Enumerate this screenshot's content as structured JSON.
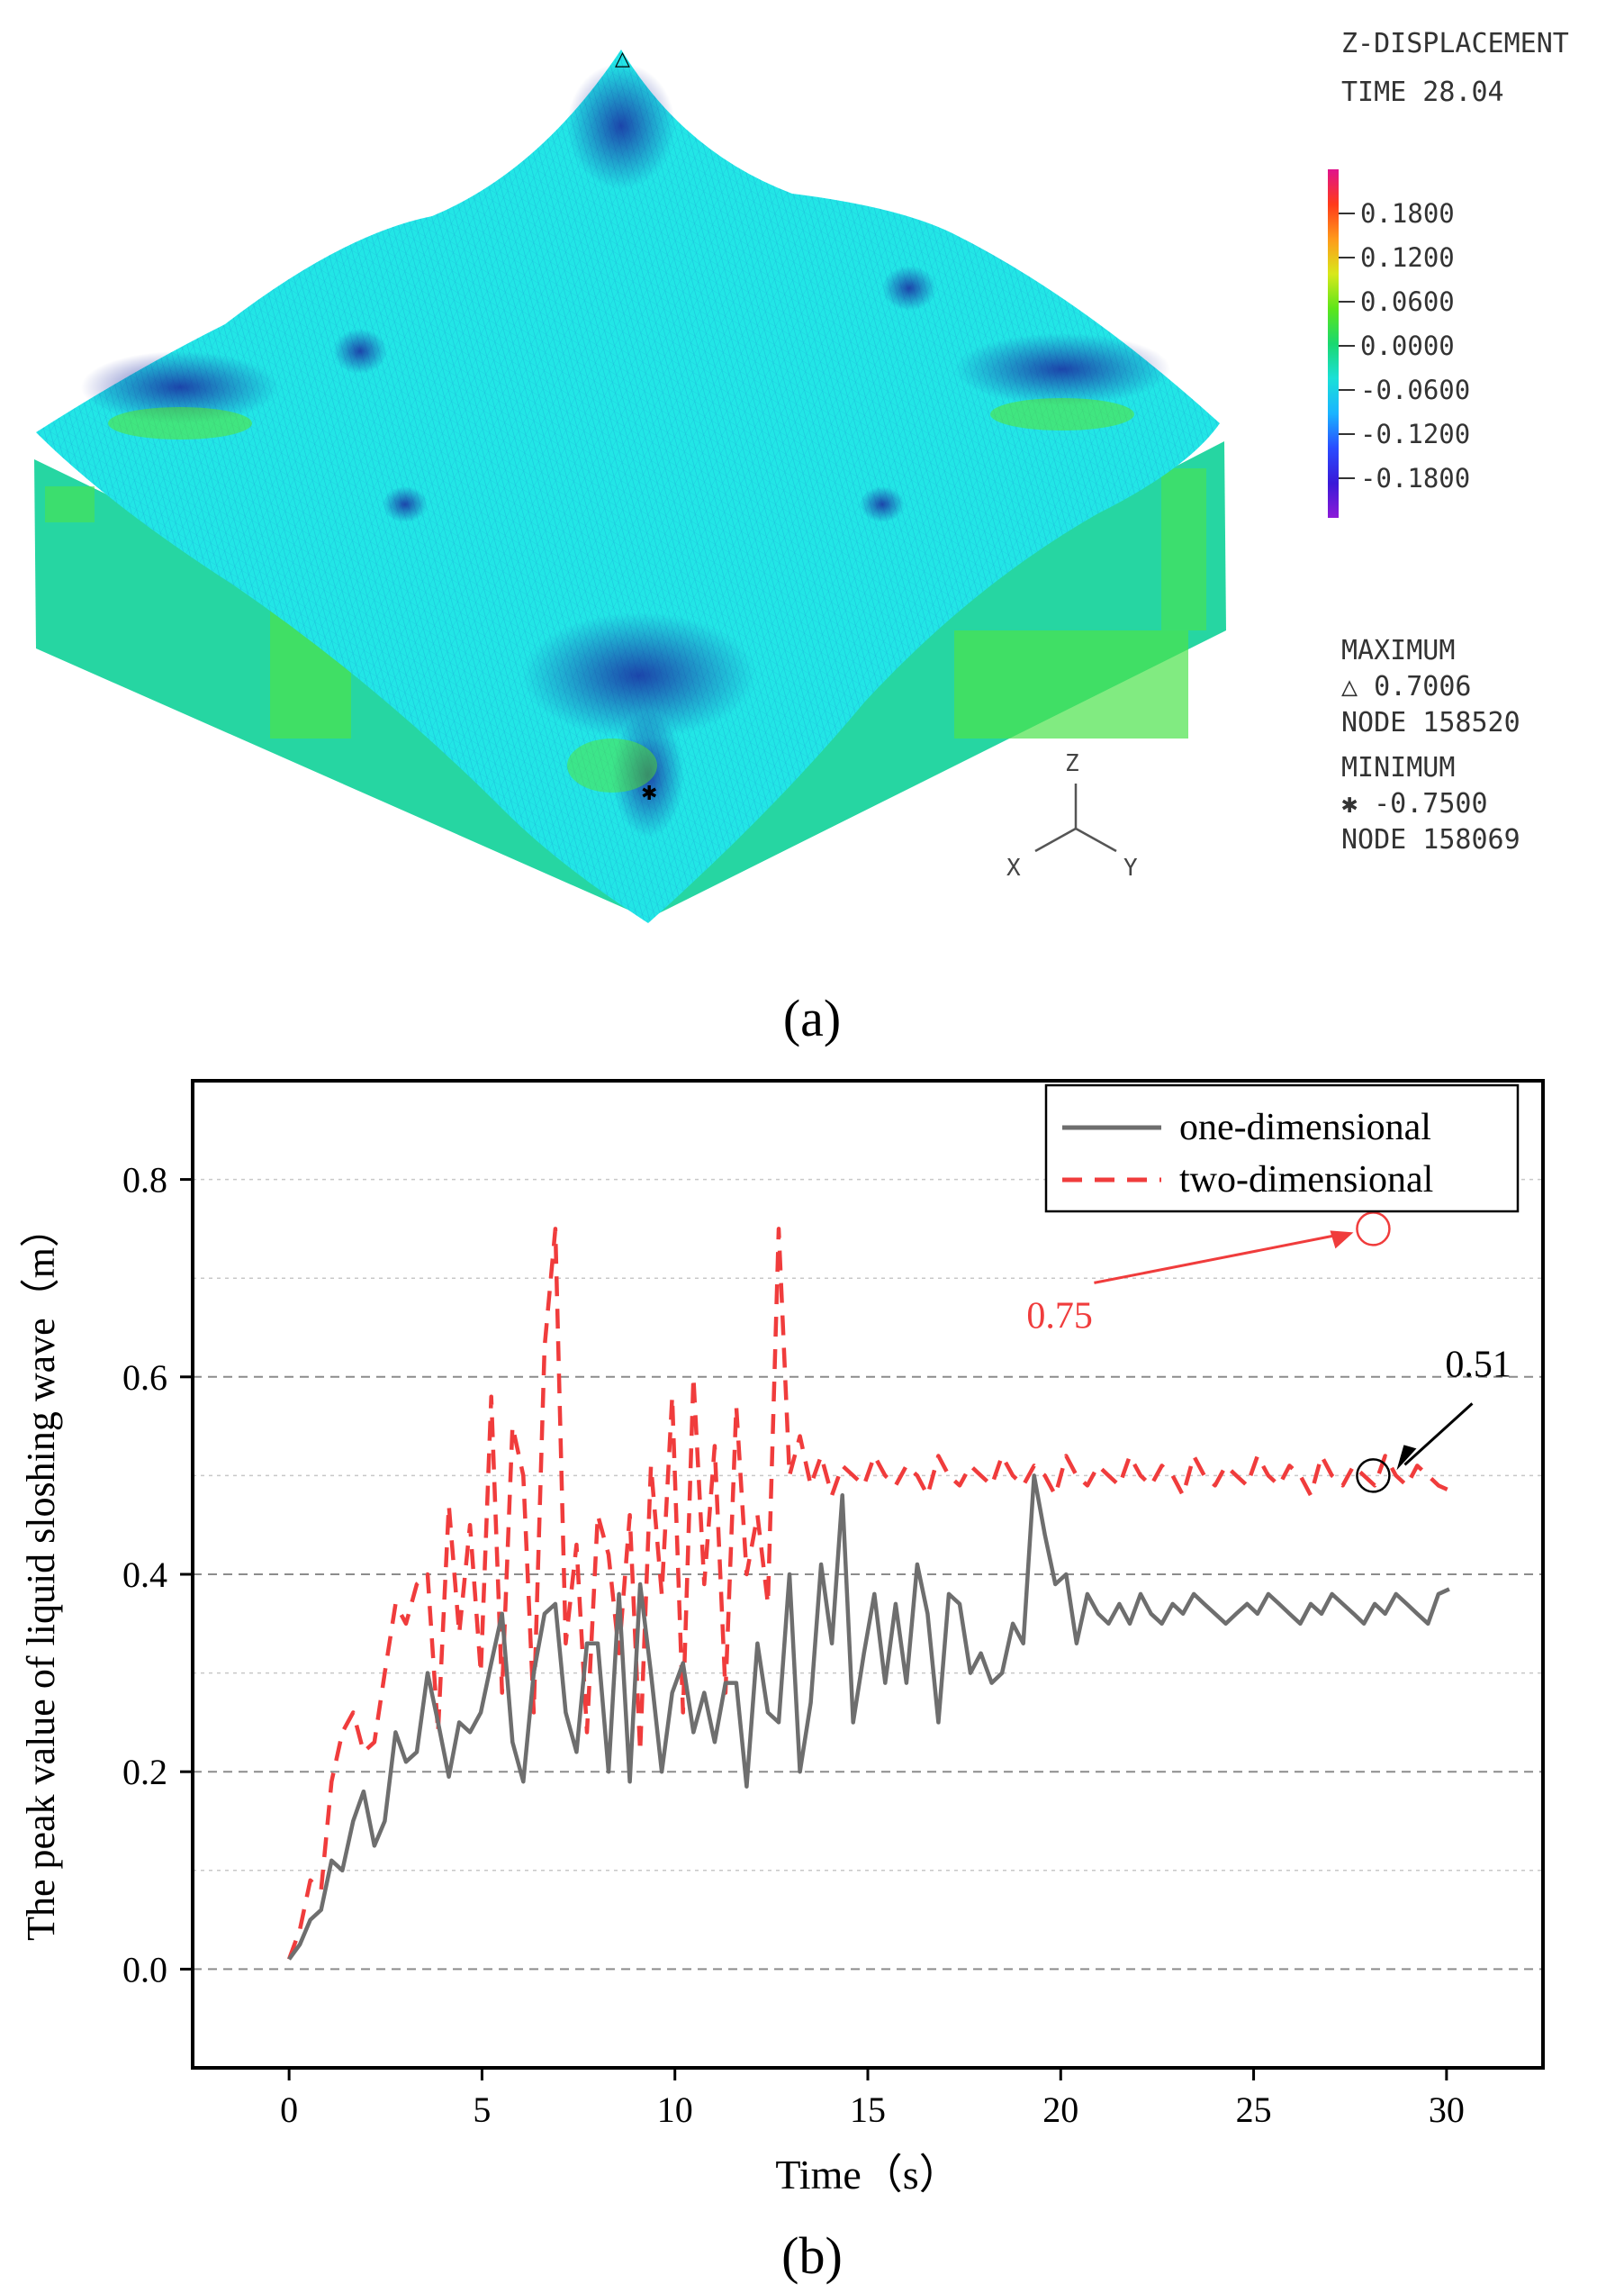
{
  "panel_a": {
    "caption": "(a)",
    "legend_title": [
      "Z-DISPLACEMENT",
      "TIME 28.04"
    ],
    "colorbar_ticks": [
      "0.1800",
      "0.1200",
      "0.0600",
      "0.0000",
      "-0.0600",
      "-0.1200",
      "-0.1800"
    ],
    "colorbar_colors": [
      "#e0148c",
      "#ff3a1a",
      "#ff9a1a",
      "#d8e81a",
      "#5de61a",
      "#1ad870",
      "#1ae0d8",
      "#1ab4ff",
      "#2a4cff",
      "#3a1ad8",
      "#8c1ad8"
    ],
    "maximum_label": "MAXIMUM",
    "maximum_value": "△ 0.7006",
    "maximum_node": "NODE 158520",
    "minimum_label": "MINIMUM",
    "minimum_value": "✱ -0.7500",
    "minimum_node": "NODE 158069",
    "axes_triad": {
      "z": "Z",
      "x": "X",
      "y": "Y"
    },
    "fill_color": "#22e6e6",
    "side_color": "#26d6a2"
  },
  "panel_b": {
    "caption": "(b)"
  },
  "chart_data": {
    "type": "line",
    "title": "",
    "xlabel": "Time（s）",
    "ylabel": "The peak value of liquid sloshing wave（m）",
    "xlim": [
      -2.5,
      32.5
    ],
    "ylim": [
      -0.1,
      0.9
    ],
    "xticks": [
      "0",
      "5",
      "10",
      "15",
      "20",
      "25",
      "30"
    ],
    "yticks": [
      "0.0",
      "0.2",
      "0.4",
      "0.6",
      "0.8"
    ],
    "grid": "horizontal dashed",
    "legend_position": "top-right",
    "series": [
      {
        "name": "one-dimensional",
        "color": "#6e6e6e",
        "style": "solid",
        "x": [
          0,
          0.28,
          0.55,
          0.83,
          1.1,
          1.38,
          1.66,
          1.93,
          2.21,
          2.48,
          2.76,
          3.03,
          3.31,
          3.59,
          3.86,
          4.14,
          4.41,
          4.69,
          4.97,
          5.24,
          5.52,
          5.79,
          6.07,
          6.34,
          6.62,
          6.9,
          7.17,
          7.45,
          7.72,
          8.0,
          8.28,
          8.55,
          8.83,
          9.1,
          9.38,
          9.66,
          9.93,
          10.21,
          10.48,
          10.76,
          11.03,
          11.31,
          11.59,
          11.86,
          12.14,
          12.41,
          12.69,
          12.97,
          13.24,
          13.52,
          13.79,
          14.07,
          14.34,
          14.62,
          14.9,
          15.17,
          15.45,
          15.72,
          16.0,
          16.28,
          16.55,
          16.83,
          17.1,
          17.38,
          17.66,
          17.93,
          18.21,
          18.48,
          18.76,
          19.03,
          19.31,
          19.59,
          19.86,
          20.14,
          20.41,
          20.69,
          20.97,
          21.24,
          21.52,
          21.79,
          22.07,
          22.34,
          22.62,
          22.9,
          23.17,
          23.45,
          23.72,
          24.0,
          24.28,
          24.55,
          24.83,
          25.1,
          25.38,
          25.66,
          25.93,
          26.21,
          26.48,
          26.76,
          27.03,
          27.31,
          27.59,
          27.86,
          28.14,
          28.41,
          28.69,
          28.97,
          29.24,
          29.52,
          29.79,
          30.07
        ],
        "values": [
          0.01,
          0.025,
          0.05,
          0.06,
          0.11,
          0.1,
          0.15,
          0.18,
          0.125,
          0.15,
          0.24,
          0.21,
          0.22,
          0.3,
          0.25,
          0.195,
          0.25,
          0.24,
          0.26,
          0.31,
          0.36,
          0.23,
          0.19,
          0.3,
          0.36,
          0.37,
          0.26,
          0.22,
          0.33,
          0.33,
          0.2,
          0.38,
          0.19,
          0.39,
          0.3,
          0.2,
          0.28,
          0.31,
          0.24,
          0.28,
          0.23,
          0.29,
          0.29,
          0.185,
          0.33,
          0.26,
          0.25,
          0.4,
          0.2,
          0.27,
          0.41,
          0.33,
          0.48,
          0.25,
          0.32,
          0.38,
          0.29,
          0.37,
          0.29,
          0.41,
          0.36,
          0.25,
          0.38,
          0.37,
          0.3,
          0.32,
          0.29,
          0.3,
          0.35,
          0.33,
          0.5,
          0.44,
          0.39,
          0.4,
          0.33,
          0.38,
          0.36,
          0.35,
          0.37,
          0.35,
          0.38,
          0.36,
          0.35,
          0.37,
          0.36,
          0.38,
          0.37,
          0.36,
          0.35,
          0.36,
          0.37,
          0.36,
          0.38,
          0.37,
          0.36,
          0.35,
          0.37,
          0.36,
          0.38,
          0.37,
          0.36,
          0.35,
          0.37,
          0.36,
          0.38,
          0.37,
          0.36,
          0.35,
          0.38,
          0.385
        ]
      },
      {
        "name": "two-dimensional",
        "color": "#f03c3c",
        "style": "dashed",
        "x": [
          0,
          0.28,
          0.55,
          0.83,
          1.1,
          1.38,
          1.66,
          1.93,
          2.21,
          2.48,
          2.76,
          3.03,
          3.31,
          3.59,
          3.86,
          4.14,
          4.41,
          4.69,
          4.97,
          5.24,
          5.52,
          5.79,
          6.07,
          6.34,
          6.62,
          6.9,
          7.17,
          7.45,
          7.72,
          8.0,
          8.28,
          8.55,
          8.83,
          9.1,
          9.38,
          9.66,
          9.93,
          10.21,
          10.48,
          10.76,
          11.03,
          11.31,
          11.59,
          11.86,
          12.14,
          12.41,
          12.69,
          12.97,
          13.24,
          13.52,
          13.79,
          14.07,
          14.34,
          14.62,
          14.9,
          15.17,
          15.45,
          15.72,
          16.0,
          16.28,
          16.55,
          16.83,
          17.1,
          17.38,
          17.66,
          17.93,
          18.21,
          18.48,
          18.76,
          19.03,
          19.31,
          19.59,
          19.86,
          20.14,
          20.41,
          20.69,
          20.97,
          21.24,
          21.52,
          21.79,
          22.07,
          22.34,
          22.62,
          22.9,
          23.17,
          23.45,
          23.72,
          24.0,
          24.28,
          24.55,
          24.83,
          25.1,
          25.38,
          25.66,
          25.93,
          26.21,
          26.48,
          26.76,
          27.03,
          27.31,
          27.59,
          27.86,
          28.14,
          28.41,
          28.69,
          28.97,
          29.24,
          29.52,
          29.79,
          30.07
        ],
        "values": [
          0.01,
          0.04,
          0.09,
          0.08,
          0.19,
          0.24,
          0.26,
          0.22,
          0.23,
          0.3,
          0.37,
          0.35,
          0.39,
          0.4,
          0.24,
          0.47,
          0.34,
          0.45,
          0.3,
          0.58,
          0.28,
          0.55,
          0.5,
          0.26,
          0.63,
          0.75,
          0.33,
          0.43,
          0.24,
          0.46,
          0.42,
          0.32,
          0.46,
          0.22,
          0.51,
          0.38,
          0.58,
          0.26,
          0.6,
          0.39,
          0.53,
          0.28,
          0.57,
          0.4,
          0.46,
          0.37,
          0.75,
          0.5,
          0.54,
          0.49,
          0.52,
          0.48,
          0.51,
          0.5,
          0.49,
          0.52,
          0.5,
          0.49,
          0.51,
          0.5,
          0.48,
          0.52,
          0.5,
          0.49,
          0.51,
          0.5,
          0.49,
          0.52,
          0.5,
          0.49,
          0.51,
          0.5,
          0.48,
          0.52,
          0.5,
          0.49,
          0.51,
          0.5,
          0.49,
          0.52,
          0.5,
          0.49,
          0.51,
          0.5,
          0.48,
          0.52,
          0.5,
          0.49,
          0.51,
          0.5,
          0.49,
          0.52,
          0.5,
          0.49,
          0.51,
          0.5,
          0.48,
          0.52,
          0.5,
          0.49,
          0.51,
          0.5,
          0.49,
          0.52,
          0.5,
          0.49,
          0.51,
          0.5,
          0.49,
          0.485
        ]
      }
    ],
    "annotations": [
      {
        "text": "0.75",
        "x": 28.1,
        "y": 0.75,
        "color": "#f03c3c"
      },
      {
        "text": "0.51",
        "x": 28.1,
        "y": 0.5,
        "color": "#000000"
      }
    ]
  }
}
